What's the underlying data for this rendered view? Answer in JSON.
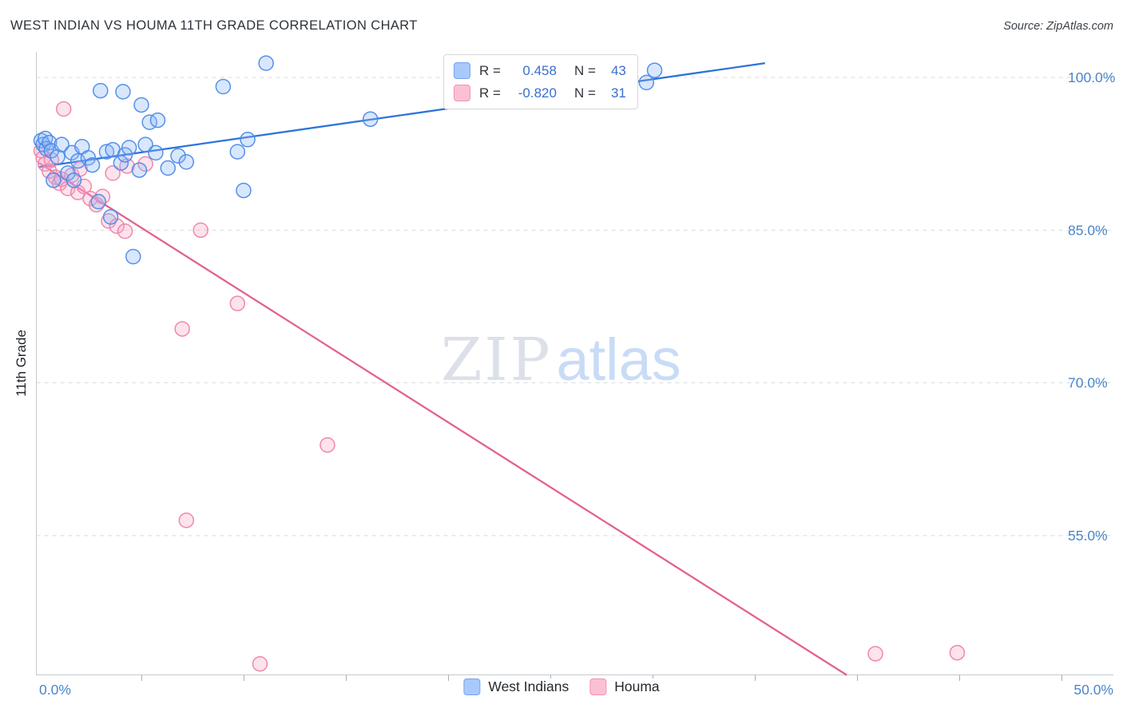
{
  "header": {
    "title": "WEST INDIAN VS HOUMA 11TH GRADE CORRELATION CHART",
    "source": "Source: ZipAtlas.com"
  },
  "watermark": {
    "zip": "ZIP",
    "atlas": "atlas"
  },
  "stats_box": {
    "series": [
      {
        "r_label": "R =",
        "r_value": "0.458",
        "n_label": "N =",
        "n_value": "43"
      },
      {
        "r_label": "R =",
        "r_value": "-0.820",
        "n_label": "N =",
        "n_value": "31"
      }
    ]
  },
  "legend": {
    "items": [
      {
        "label": "West Indians",
        "color": "#a9c8fb",
        "border": "#74a4ef"
      },
      {
        "label": "Houma",
        "color": "#fbc0d4",
        "border": "#f291b4"
      }
    ]
  },
  "axes": {
    "x": {
      "min_label": "0.0%",
      "max_label": "50.0%",
      "min": 0,
      "max": 50
    },
    "y": {
      "title": "11th Grade",
      "labels": [
        "100.0%",
        "85.0%",
        "70.0%",
        "55.0%"
      ],
      "values": [
        100,
        85,
        70,
        55
      ]
    }
  },
  "chart_data": {
    "type": "scatter",
    "title": "WEST INDIAN VS HOUMA 11TH GRADE CORRELATION CHART",
    "xlabel": "",
    "ylabel": "11th Grade",
    "xlim": [
      0,
      50
    ],
    "ylim": [
      41,
      102.5
    ],
    "grid": "horizontal-dashed",
    "legend_position": "bottom-center",
    "series": [
      {
        "name": "West Indians",
        "r": 0.458,
        "n": 43,
        "point_fill": "#8ab4f8",
        "point_stroke": "#4d8ae8",
        "line_color": "#2e74d9",
        "trend": {
          "x1": 0,
          "y1": 91.2,
          "x2": 35.5,
          "y2": 101.4
        },
        "points": [
          [
            0.1,
            93.8
          ],
          [
            0.2,
            93.4
          ],
          [
            0.3,
            94.0
          ],
          [
            0.35,
            93.0
          ],
          [
            0.5,
            93.6
          ],
          [
            0.6,
            92.8
          ],
          [
            0.7,
            89.9
          ],
          [
            0.9,
            92.2
          ],
          [
            1.1,
            93.4
          ],
          [
            1.4,
            90.6
          ],
          [
            1.6,
            92.6
          ],
          [
            1.7,
            89.9
          ],
          [
            1.9,
            91.8
          ],
          [
            2.1,
            93.2
          ],
          [
            2.4,
            92.1
          ],
          [
            2.6,
            91.4
          ],
          [
            2.9,
            87.8
          ],
          [
            3.0,
            98.7
          ],
          [
            3.3,
            92.7
          ],
          [
            3.5,
            86.3
          ],
          [
            3.6,
            92.9
          ],
          [
            4.0,
            91.6
          ],
          [
            4.1,
            98.6
          ],
          [
            4.2,
            92.4
          ],
          [
            4.4,
            93.1
          ],
          [
            4.6,
            82.4
          ],
          [
            4.9,
            90.9
          ],
          [
            5.0,
            97.3
          ],
          [
            5.2,
            93.4
          ],
          [
            5.4,
            95.6
          ],
          [
            5.7,
            92.6
          ],
          [
            5.8,
            95.8
          ],
          [
            6.3,
            91.1
          ],
          [
            6.8,
            92.3
          ],
          [
            7.2,
            91.7
          ],
          [
            9.0,
            99.1
          ],
          [
            9.7,
            92.7
          ],
          [
            10.0,
            88.9
          ],
          [
            10.2,
            93.9
          ],
          [
            11.1,
            101.4
          ],
          [
            16.2,
            95.9
          ],
          [
            29.7,
            99.5
          ],
          [
            30.1,
            100.7
          ]
        ]
      },
      {
        "name": "Houma",
        "r": -0.82,
        "n": 31,
        "point_fill": "#f9a8c4",
        "point_stroke": "#ef82aa",
        "line_color": "#e36292",
        "trend": {
          "x1": 0,
          "y1": 91.6,
          "x2": 39.5,
          "y2": 41.3
        },
        "points": [
          [
            0.1,
            92.8
          ],
          [
            0.2,
            92.1
          ],
          [
            0.3,
            91.5
          ],
          [
            0.5,
            90.8
          ],
          [
            0.6,
            91.9
          ],
          [
            0.8,
            90.2
          ],
          [
            1.0,
            89.6
          ],
          [
            1.1,
            90.0
          ],
          [
            1.2,
            96.9
          ],
          [
            1.4,
            89.1
          ],
          [
            1.6,
            90.4
          ],
          [
            1.9,
            88.7
          ],
          [
            2.0,
            91.0
          ],
          [
            2.2,
            89.3
          ],
          [
            2.5,
            88.1
          ],
          [
            2.8,
            87.5
          ],
          [
            3.1,
            88.3
          ],
          [
            3.4,
            85.9
          ],
          [
            3.6,
            90.6
          ],
          [
            3.8,
            85.4
          ],
          [
            4.2,
            84.9
          ],
          [
            4.3,
            91.3
          ],
          [
            5.2,
            91.5
          ],
          [
            7.0,
            75.3
          ],
          [
            7.2,
            56.5
          ],
          [
            7.9,
            85.0
          ],
          [
            9.7,
            77.8
          ],
          [
            10.8,
            42.4
          ],
          [
            14.1,
            63.9
          ],
          [
            40.9,
            43.4
          ],
          [
            44.9,
            43.5
          ]
        ]
      }
    ]
  }
}
